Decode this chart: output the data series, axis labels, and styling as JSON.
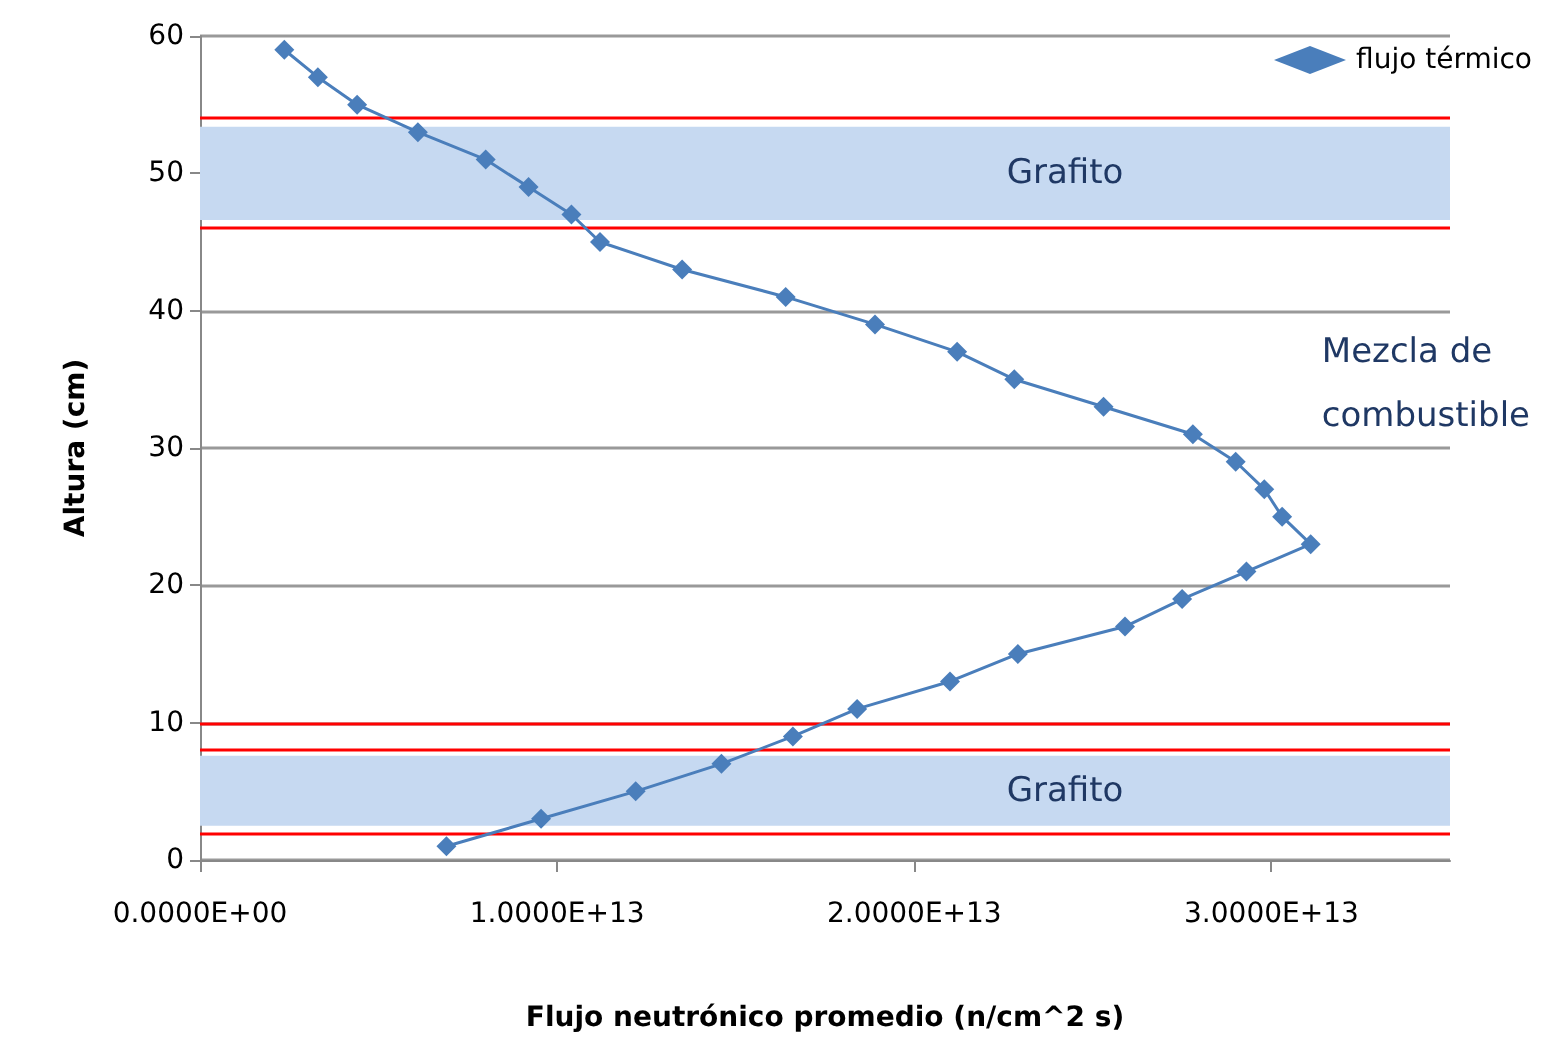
{
  "chart_data": {
    "type": "line",
    "xlabel": "Flujo neutrónico promedio (n/cm^2 s)",
    "ylabel": "Altura (cm)",
    "x": [
      2360000000000.0,
      3300000000000.0,
      4400000000000.0,
      6100000000000.0,
      8000000000000.0,
      9200000000000.0,
      10400000000000.0,
      11200000000000.0,
      13500000000000.0,
      16400000000000.0,
      18900000000000.0,
      21200000000000.0,
      22800000000000.0,
      25300000000000.0,
      27800000000000.0,
      29000000000000.0,
      29800000000000.0,
      30300000000000.0,
      31100000000000.0,
      29300000000000.0,
      27500000000000.0,
      25900000000000.0,
      22900000000000.0,
      21000000000000.0,
      18400000000000.0,
      16600000000000.0,
      14600000000000.0,
      12200000000000.0,
      9550000000000.0,
      6900000000000.0
    ],
    "series": [
      {
        "name": "flujo térmico",
        "color": "#4a7ebb",
        "values": [
          59,
          57,
          55,
          53,
          51,
          49,
          47,
          45,
          43,
          41,
          39,
          37,
          35,
          33,
          31,
          29,
          27,
          25,
          23,
          21,
          19,
          17,
          15,
          13,
          11,
          9,
          7,
          5,
          3,
          1
        ]
      }
    ],
    "xlim": [
      0,
      35000000000000.0
    ],
    "xticks": [
      {
        "value": 0,
        "label": "0.0000E+00"
      },
      {
        "value": 10000000000000.0,
        "label": "1.0000E+13"
      },
      {
        "value": 20000000000000.0,
        "label": "2.0000E+13"
      },
      {
        "value": 30000000000000.0,
        "label": "3.0000E+13"
      }
    ],
    "ylim": [
      0,
      60
    ],
    "yticks": [
      0,
      10,
      20,
      30,
      40,
      50,
      60
    ],
    "ref_lines": [
      {
        "axis": "y",
        "value": 54,
        "color": "#ff0000"
      },
      {
        "axis": "y",
        "value": 46,
        "color": "#ff0000"
      },
      {
        "axis": "y",
        "value": 10,
        "color": "#ff0000"
      },
      {
        "axis": "y",
        "value": 8,
        "color": "#ff0000"
      },
      {
        "axis": "y",
        "value": 2,
        "color": "#ff0000"
      }
    ],
    "bands": [
      {
        "axis": "y",
        "from": 46.6,
        "to": 53.4,
        "label": "Grafito",
        "color": "#c6d9f1"
      },
      {
        "axis": "y",
        "from": 2.5,
        "to": 7.6,
        "label": "Grafito",
        "color": "#c6d9f1"
      }
    ],
    "annotations": [
      "Mezcla de combustible"
    ],
    "grid": "y",
    "legend": "top right",
    "marker": "diamond",
    "line_style": "solid"
  }
}
